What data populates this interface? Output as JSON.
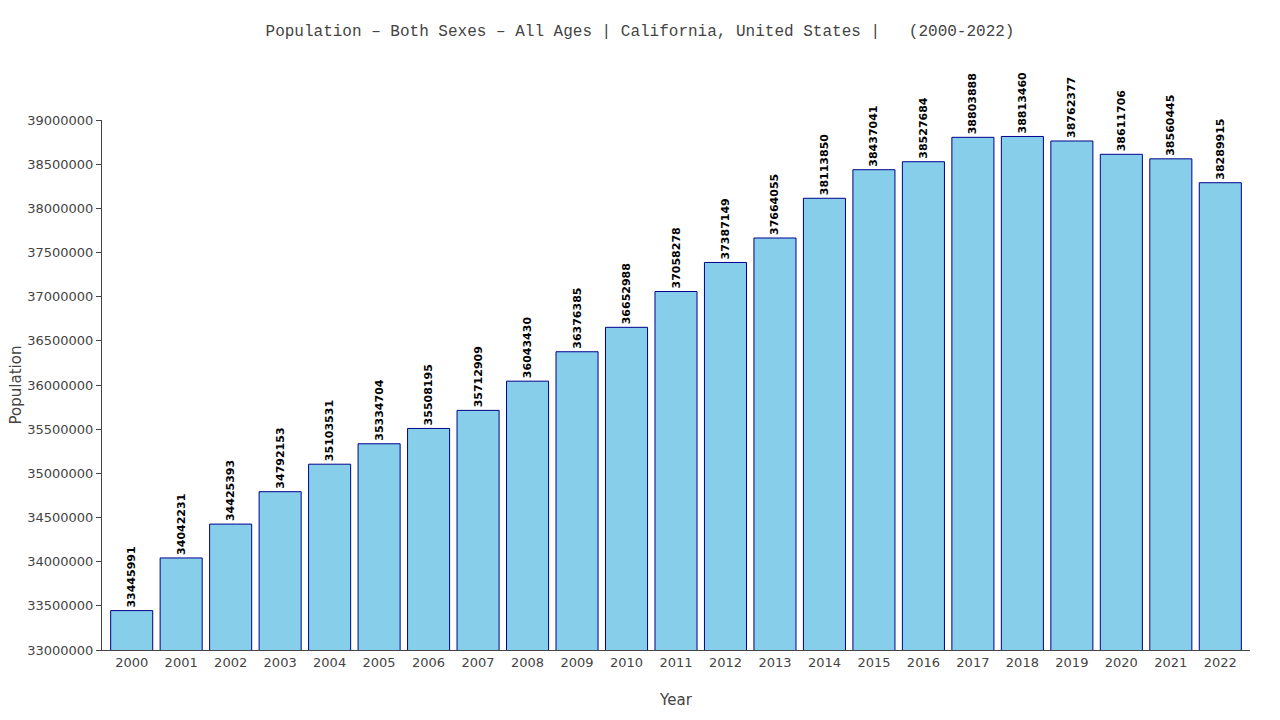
{
  "chart_data": {
    "type": "bar",
    "title": "Population – Both Sexes – All Ages | California, United States |   (2000-2022)",
    "xlabel": "Year",
    "ylabel": "Population",
    "categories": [
      "2000",
      "2001",
      "2002",
      "2003",
      "2004",
      "2005",
      "2006",
      "2007",
      "2008",
      "2009",
      "2010",
      "2011",
      "2012",
      "2013",
      "2014",
      "2015",
      "2016",
      "2017",
      "2018",
      "2019",
      "2020",
      "2021",
      "2022"
    ],
    "values": [
      33445991,
      34042231,
      34425393,
      34792153,
      35103531,
      35334704,
      35508195,
      35712909,
      36043430,
      36376385,
      36652988,
      37058278,
      37387149,
      37664055,
      38113850,
      38437041,
      38527684,
      38803888,
      38813460,
      38762377,
      38611706,
      38560445,
      38289915
    ],
    "color": "#87CEEB",
    "ylim": [
      33000000,
      39000000
    ],
    "yticks": [
      33000000,
      33500000,
      34000000,
      34500000,
      35000000,
      35500000,
      36000000,
      36500000,
      37000000,
      37500000,
      38000000,
      38500000,
      39000000
    ],
    "grid": false,
    "data_labels": true
  }
}
